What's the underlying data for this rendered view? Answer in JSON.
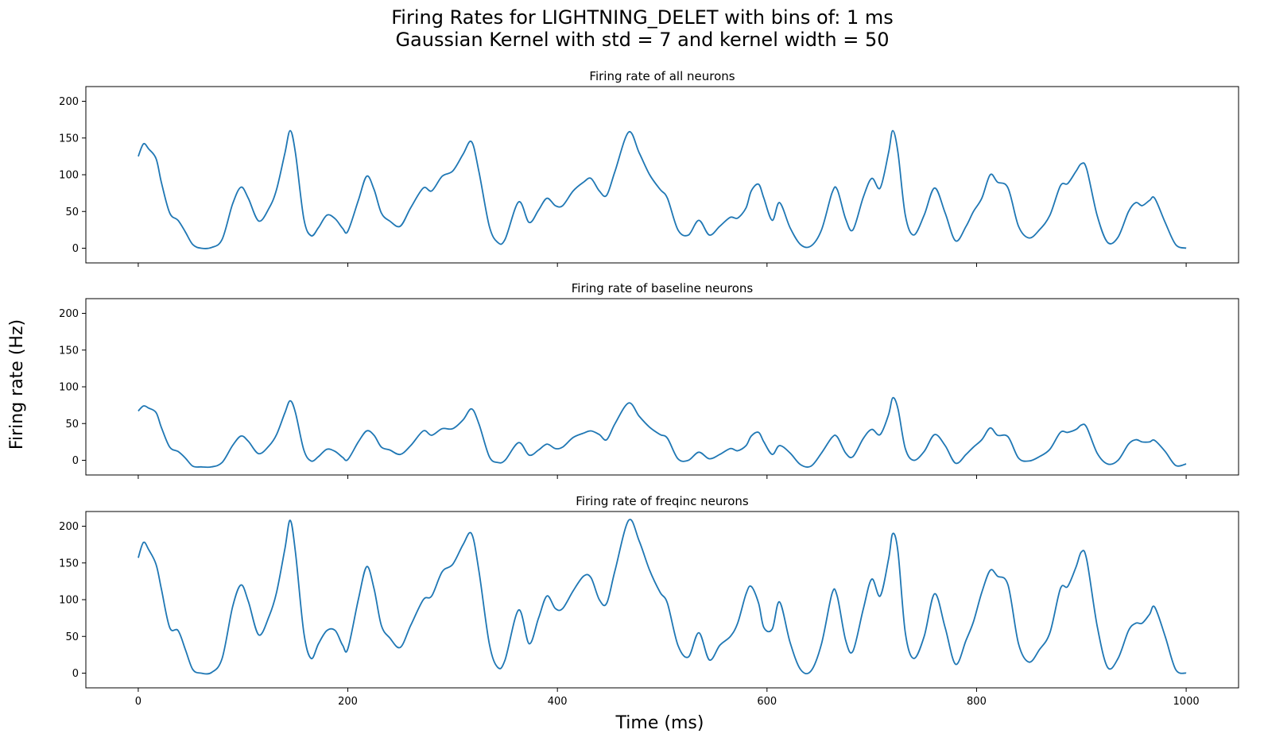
{
  "figure": {
    "suptitle_line1": "Firing Rates for LIGHTNING_DELET with bins of: 1 ms",
    "suptitle_line2": "Gaussian Kernel with std = 7 and kernel width = 50",
    "xlabel": "Time (ms)",
    "ylabel": "Firing rate (Hz)"
  },
  "style": {
    "line_color": "#1f77b4"
  },
  "chart_data": [
    {
      "type": "line",
      "title": "Firing rate of all neurons",
      "xlim": [
        -50,
        1050
      ],
      "ylim": [
        -20,
        220
      ],
      "xticks": [
        0,
        200,
        400,
        600,
        800,
        1000
      ],
      "yticks": [
        0,
        50,
        100,
        150,
        200
      ],
      "grid": false,
      "series": [
        {
          "x": [
            0,
            5,
            10,
            17,
            22,
            30,
            38,
            45,
            52,
            60,
            70,
            80,
            90,
            98,
            105,
            115,
            125,
            132,
            140,
            145,
            150,
            158,
            165,
            172,
            180,
            188,
            195,
            200,
            210,
            218,
            225,
            232,
            240,
            250,
            260,
            272,
            280,
            290,
            300,
            310,
            318,
            325,
            335,
            343,
            350,
            363,
            373,
            382,
            390,
            398,
            405,
            415,
            425,
            432,
            440,
            447,
            455,
            468,
            478,
            488,
            498,
            505,
            515,
            525,
            535,
            545,
            555,
            565,
            572,
            580,
            585,
            592,
            597,
            605,
            612,
            622,
            632,
            642,
            652,
            662,
            667,
            675,
            682,
            692,
            700,
            708,
            716,
            720,
            725,
            732,
            740,
            750,
            760,
            770,
            780,
            790,
            797,
            805,
            813,
            820,
            830,
            840,
            850,
            860,
            870,
            880,
            887,
            895,
            900,
            905,
            915,
            925,
            935,
            945,
            952,
            958,
            965,
            970,
            980,
            990,
            1000
          ],
          "values": [
            125,
            142,
            135,
            122,
            90,
            48,
            38,
            22,
            5,
            0,
            1,
            12,
            60,
            83,
            68,
            37,
            55,
            80,
            130,
            160,
            130,
            40,
            17,
            28,
            45,
            40,
            27,
            23,
            65,
            98,
            80,
            48,
            37,
            30,
            55,
            82,
            78,
            98,
            105,
            128,
            145,
            105,
            30,
            8,
            12,
            63,
            35,
            52,
            68,
            58,
            58,
            78,
            90,
            95,
            78,
            72,
            105,
            158,
            130,
            100,
            80,
            68,
            25,
            18,
            38,
            18,
            30,
            42,
            41,
            55,
            78,
            87,
            68,
            38,
            62,
            28,
            5,
            3,
            25,
            75,
            80,
            40,
            25,
            70,
            95,
            82,
            130,
            160,
            130,
            45,
            18,
            45,
            82,
            48,
            10,
            30,
            50,
            68,
            100,
            90,
            82,
            30,
            14,
            25,
            45,
            85,
            88,
            105,
            115,
            108,
            45,
            8,
            15,
            50,
            62,
            58,
            65,
            68,
            35,
            5,
            0
          ]
        }
      ]
    },
    {
      "type": "line",
      "title": "Firing rate of baseline neurons",
      "xlim": [
        -50,
        1050
      ],
      "ylim": [
        -20,
        220
      ],
      "xticks": [
        0,
        200,
        400,
        600,
        800,
        1000
      ],
      "yticks": [
        0,
        50,
        100,
        150,
        200
      ],
      "grid": false,
      "series": [
        {
          "x": [
            0,
            5,
            10,
            17,
            22,
            30,
            38,
            45,
            52,
            60,
            70,
            80,
            90,
            98,
            105,
            115,
            125,
            132,
            140,
            145,
            150,
            158,
            165,
            172,
            180,
            188,
            195,
            200,
            210,
            218,
            225,
            232,
            240,
            250,
            260,
            272,
            280,
            290,
            300,
            310,
            318,
            325,
            335,
            343,
            350,
            363,
            373,
            382,
            390,
            398,
            405,
            415,
            425,
            432,
            440,
            447,
            455,
            468,
            478,
            488,
            498,
            505,
            515,
            525,
            535,
            545,
            555,
            565,
            572,
            580,
            585,
            592,
            597,
            605,
            612,
            622,
            632,
            642,
            652,
            662,
            667,
            675,
            682,
            692,
            700,
            708,
            716,
            720,
            725,
            732,
            740,
            750,
            760,
            770,
            780,
            790,
            797,
            805,
            813,
            820,
            830,
            840,
            850,
            860,
            870,
            880,
            887,
            895,
            900,
            905,
            915,
            925,
            935,
            945,
            952,
            958,
            965,
            970,
            980,
            990,
            1000
          ],
          "values": [
            67,
            74,
            71,
            65,
            45,
            18,
            12,
            3,
            -8,
            -9,
            -9,
            -3,
            20,
            33,
            26,
            9,
            20,
            35,
            65,
            81,
            65,
            14,
            -1,
            5,
            15,
            12,
            4,
            1,
            25,
            40,
            34,
            18,
            14,
            8,
            20,
            40,
            34,
            43,
            43,
            55,
            70,
            50,
            5,
            -3,
            0,
            24,
            7,
            14,
            22,
            16,
            18,
            31,
            37,
            40,
            35,
            28,
            50,
            78,
            60,
            45,
            35,
            30,
            2,
            0,
            11,
            2,
            8,
            16,
            13,
            20,
            33,
            38,
            25,
            8,
            20,
            10,
            -6,
            -8,
            10,
            31,
            32,
            10,
            5,
            30,
            42,
            35,
            62,
            85,
            70,
            16,
            0,
            12,
            35,
            20,
            -4,
            8,
            18,
            28,
            44,
            34,
            32,
            3,
            -1,
            5,
            15,
            38,
            38,
            42,
            48,
            45,
            10,
            -5,
            0,
            22,
            28,
            25,
            25,
            27,
            12,
            -7,
            -5
          ]
        }
      ]
    },
    {
      "type": "line",
      "title": "Firing rate of freqinc neurons",
      "xlim": [
        -50,
        1050
      ],
      "ylim": [
        -20,
        220
      ],
      "xticks": [
        0,
        200,
        400,
        600,
        800,
        1000
      ],
      "yticks": [
        0,
        50,
        100,
        150,
        200
      ],
      "grid": false,
      "series": [
        {
          "x": [
            0,
            5,
            10,
            17,
            22,
            30,
            38,
            45,
            52,
            60,
            70,
            80,
            90,
            98,
            105,
            115,
            125,
            132,
            140,
            145,
            150,
            158,
            165,
            172,
            180,
            188,
            195,
            200,
            210,
            218,
            225,
            232,
            240,
            250,
            260,
            272,
            280,
            290,
            300,
            310,
            318,
            325,
            335,
            343,
            350,
            363,
            373,
            382,
            390,
            398,
            405,
            415,
            425,
            432,
            440,
            447,
            455,
            468,
            478,
            488,
            498,
            505,
            515,
            525,
            535,
            545,
            555,
            565,
            572,
            580,
            585,
            592,
            597,
            605,
            612,
            622,
            632,
            642,
            652,
            662,
            667,
            675,
            682,
            692,
            700,
            708,
            716,
            720,
            725,
            732,
            740,
            750,
            760,
            770,
            780,
            790,
            797,
            805,
            813,
            820,
            830,
            840,
            850,
            860,
            870,
            880,
            887,
            895,
            900,
            905,
            915,
            925,
            935,
            945,
            952,
            958,
            965,
            970,
            980,
            990,
            1000
          ],
          "values": [
            157,
            178,
            168,
            148,
            115,
            62,
            58,
            32,
            5,
            0,
            1,
            20,
            90,
            120,
            98,
            52,
            78,
            110,
            170,
            208,
            165,
            55,
            20,
            40,
            58,
            58,
            38,
            33,
            100,
            145,
            115,
            65,
            48,
            35,
            65,
            100,
            105,
            138,
            148,
            175,
            190,
            140,
            40,
            8,
            18,
            86,
            40,
            75,
            105,
            88,
            88,
            112,
            132,
            130,
            100,
            95,
            140,
            208,
            180,
            140,
            110,
            95,
            38,
            22,
            55,
            18,
            38,
            50,
            68,
            108,
            118,
            95,
            62,
            60,
            97,
            42,
            5,
            3,
            40,
            108,
            105,
            45,
            30,
            88,
            128,
            105,
            155,
            190,
            165,
            55,
            20,
            50,
            108,
            62,
            12,
            45,
            70,
            110,
            140,
            132,
            120,
            40,
            15,
            32,
            55,
            115,
            118,
            145,
            165,
            155,
            65,
            8,
            20,
            58,
            68,
            68,
            80,
            90,
            50,
            5,
            0
          ]
        }
      ]
    }
  ]
}
